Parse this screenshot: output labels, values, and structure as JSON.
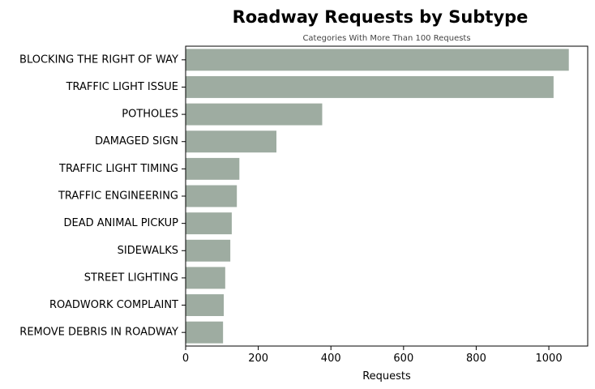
{
  "chart_data": {
    "type": "bar",
    "orientation": "horizontal",
    "title": "Roadway Requests by Subtype",
    "subtitle": "Categories With More Than 100 Requests",
    "xlabel": "Requests",
    "ylabel": "",
    "xlim": [
      0,
      1107
    ],
    "xticks": [
      0,
      200,
      400,
      600,
      800,
      1000
    ],
    "grid": false,
    "bar_color": "#9eaca1",
    "categories": [
      "BLOCKING THE RIGHT OF WAY",
      "TRAFFIC LIGHT ISSUE",
      "POTHOLES",
      "DAMAGED SIGN",
      "TRAFFIC LIGHT TIMING",
      "TRAFFIC ENGINEERING",
      "DEAD ANIMAL PICKUP",
      "SIDEWALKS",
      "STREET LIGHTING",
      "ROADWORK COMPLAINT",
      "REMOVE DEBRIS IN ROADWAY"
    ],
    "values": [
      1055,
      1013,
      376,
      250,
      148,
      141,
      127,
      123,
      109,
      105,
      103
    ]
  }
}
